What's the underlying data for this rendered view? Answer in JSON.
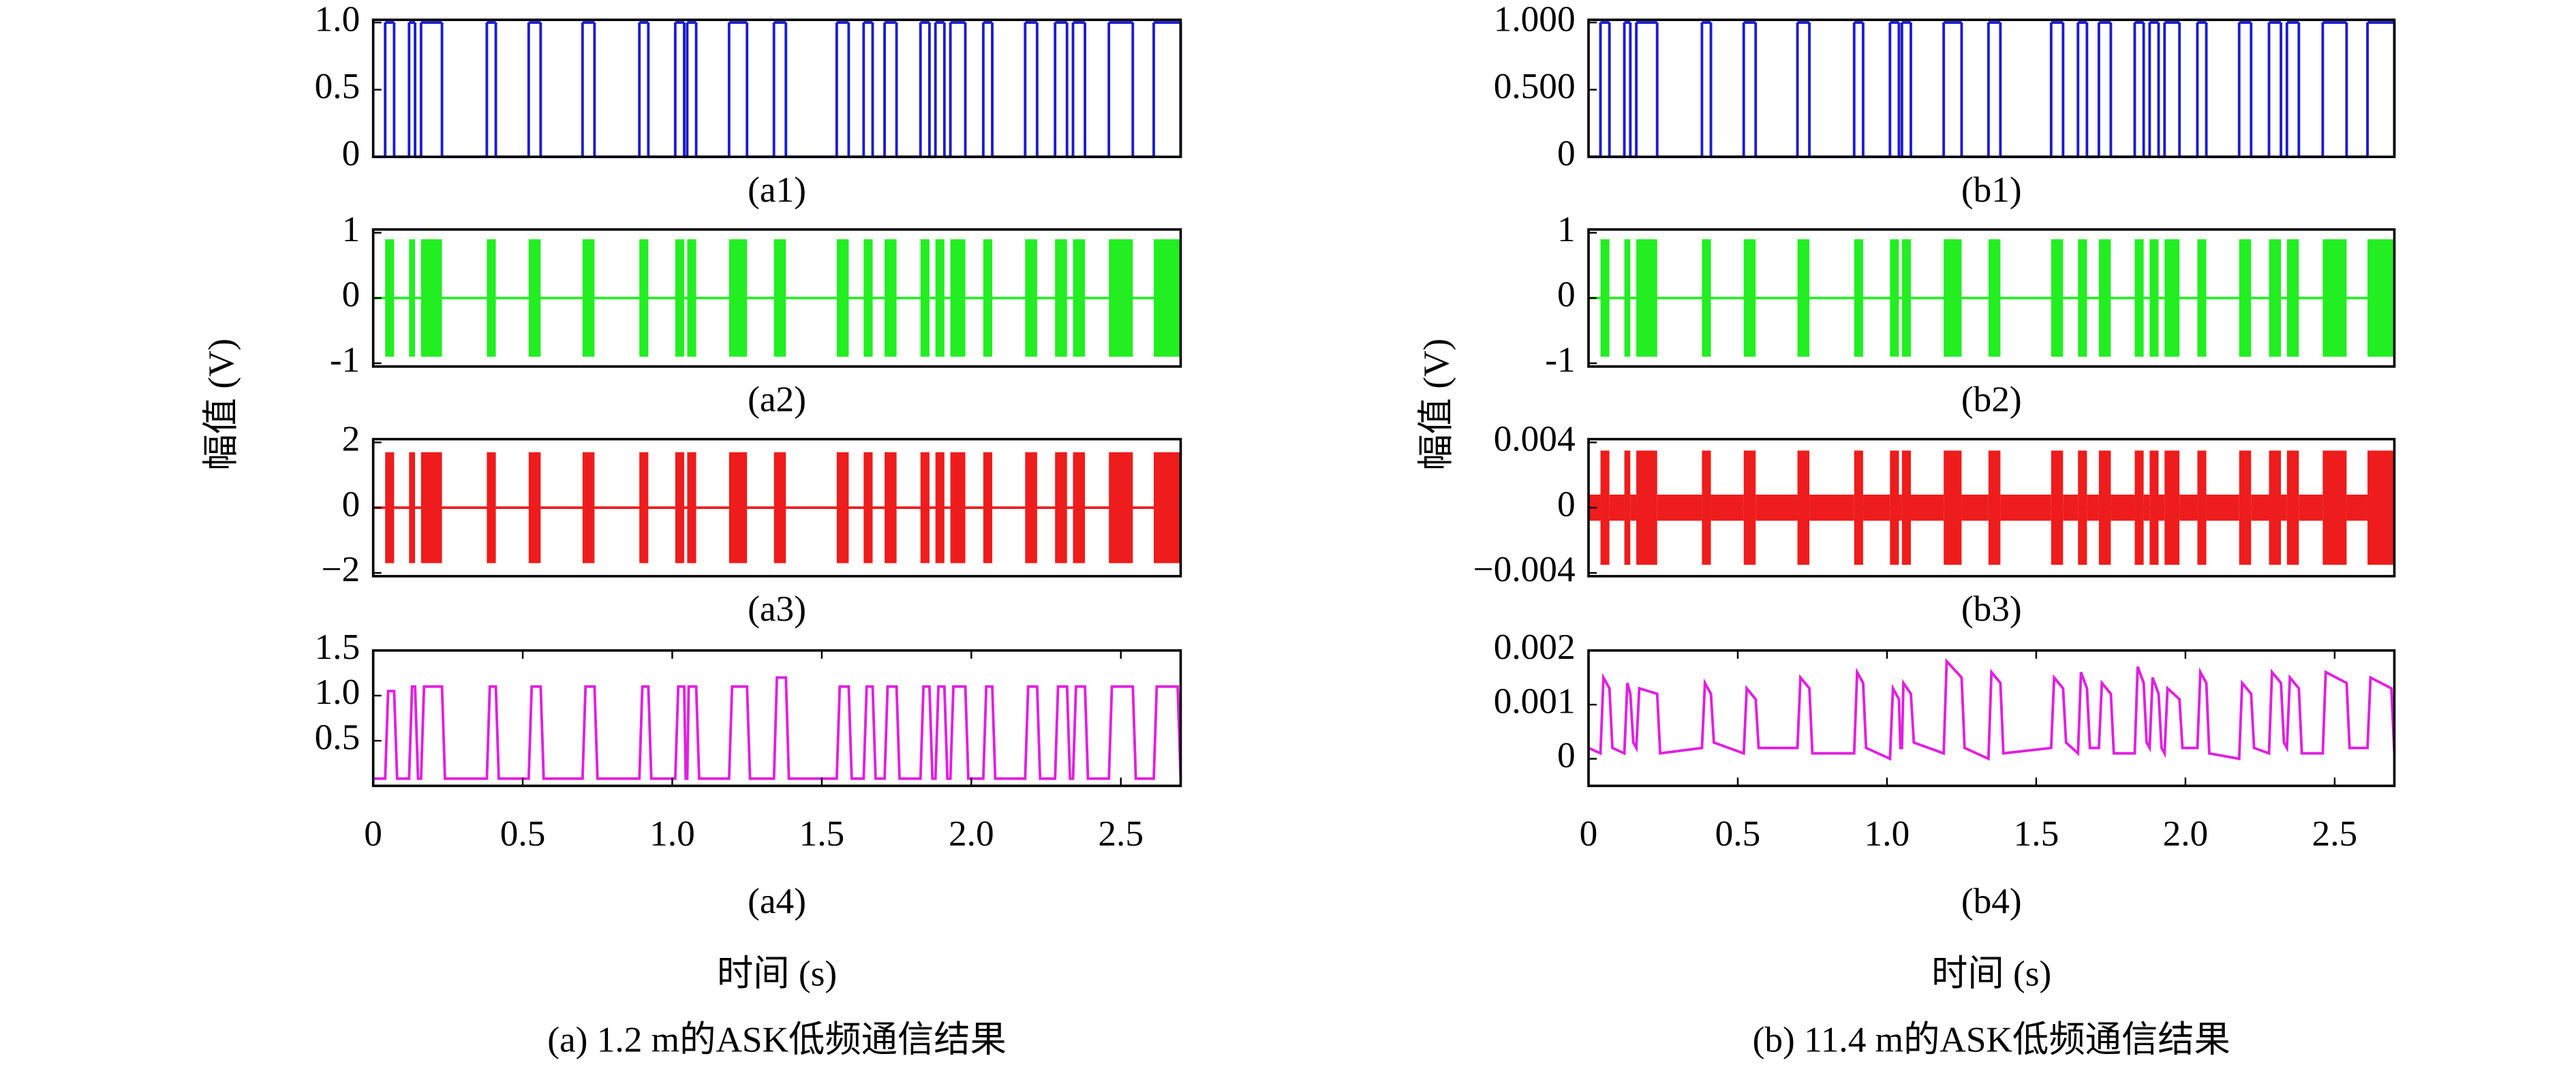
{
  "figures": [
    {
      "ylabel": "幅值 (V)",
      "xlabel": "时间 (s)",
      "caption": "(a) 1.2 m的ASK低频通信结果"
    },
    {
      "ylabel": "幅值 (V)",
      "xlabel": "时间 (s)",
      "caption": "(b) 11.4 m的ASK低频通信结果"
    }
  ],
  "chart_data": [
    {
      "type": "step",
      "title": "(a1)",
      "color": "#1c1ccf",
      "xlim": [
        0,
        2.7
      ],
      "ylim": [
        0,
        1.02
      ],
      "yticks": [
        0,
        0.5,
        {
          "value": 1,
          "label": "1.0"
        }
      ],
      "x": [
        0,
        0.04,
        0.07,
        0.12,
        0.14,
        0.16,
        0.23,
        0.38,
        0.41,
        0.52,
        0.56,
        0.7,
        0.74,
        0.89,
        0.92,
        1.01,
        1.04,
        1.05,
        1.08,
        1.19,
        1.25,
        1.34,
        1.38,
        1.55,
        1.59,
        1.64,
        1.67,
        1.71,
        1.75,
        1.83,
        1.86,
        1.88,
        1.91,
        1.93,
        1.98,
        2.04,
        2.07,
        2.18,
        2.22,
        2.28,
        2.32,
        2.34,
        2.38,
        2.46,
        2.54,
        2.61,
        2.7
      ],
      "values": [
        0,
        1,
        0,
        1,
        0,
        1,
        0,
        1,
        0,
        1,
        0,
        1,
        0,
        1,
        0,
        1,
        0,
        1,
        0,
        1,
        0,
        1,
        0,
        1,
        0,
        1,
        0,
        1,
        0,
        1,
        0,
        1,
        0,
        1,
        0,
        1,
        0,
        1,
        0,
        1,
        0,
        1,
        0,
        1,
        0,
        1,
        0
      ]
    },
    {
      "type": "envelope",
      "title": "(a2)",
      "color": "#22ee22",
      "xlim": [
        0,
        2.7
      ],
      "ylim": [
        -1.05,
        1.05
      ],
      "yticks": [
        -1,
        0,
        1
      ],
      "x": [
        0,
        0.04,
        0.07,
        0.12,
        0.14,
        0.16,
        0.23,
        0.38,
        0.41,
        0.52,
        0.56,
        0.7,
        0.74,
        0.89,
        0.92,
        1.01,
        1.04,
        1.05,
        1.08,
        1.19,
        1.25,
        1.34,
        1.38,
        1.55,
        1.59,
        1.64,
        1.67,
        1.71,
        1.75,
        1.83,
        1.86,
        1.88,
        1.91,
        1.93,
        1.98,
        2.04,
        2.07,
        2.18,
        2.22,
        2.28,
        2.32,
        2.34,
        2.38,
        2.46,
        2.54,
        2.61,
        2.7
      ],
      "values": [
        0,
        0.9,
        0,
        0.9,
        0,
        0.9,
        0,
        0.9,
        0,
        0.9,
        0,
        0.9,
        0,
        0.9,
        0,
        0.9,
        0,
        0.9,
        0,
        0.9,
        0,
        0.9,
        0,
        0.9,
        0,
        0.9,
        0,
        0.9,
        0,
        0.9,
        0,
        0.9,
        0,
        0.9,
        0,
        0.9,
        0,
        0.9,
        0,
        0.9,
        0,
        0.9,
        0,
        0.9,
        0,
        0.9,
        0
      ]
    },
    {
      "type": "envelope",
      "title": "(a3)",
      "color": "#ee1c1c",
      "xlim": [
        0,
        2.7
      ],
      "ylim": [
        -2.1,
        2.1
      ],
      "yticks": [
        {
          "value": -2,
          "label": "−2"
        },
        0,
        2
      ],
      "x": [
        0,
        0.04,
        0.07,
        0.12,
        0.14,
        0.16,
        0.23,
        0.38,
        0.41,
        0.52,
        0.56,
        0.7,
        0.74,
        0.89,
        0.92,
        1.01,
        1.04,
        1.05,
        1.08,
        1.19,
        1.25,
        1.34,
        1.38,
        1.55,
        1.59,
        1.64,
        1.67,
        1.71,
        1.75,
        1.83,
        1.86,
        1.88,
        1.91,
        1.93,
        1.98,
        2.04,
        2.07,
        2.18,
        2.22,
        2.28,
        2.32,
        2.34,
        2.38,
        2.46,
        2.54,
        2.61,
        2.7
      ],
      "values": [
        0,
        1.7,
        0,
        1.7,
        0,
        1.7,
        0,
        1.7,
        0,
        1.7,
        0,
        1.7,
        0,
        1.7,
        0,
        1.7,
        0,
        1.7,
        0,
        1.7,
        0,
        1.7,
        0,
        1.7,
        0,
        1.7,
        0,
        1.7,
        0,
        1.7,
        0,
        1.7,
        0,
        1.7,
        0,
        1.7,
        0,
        1.7,
        0,
        1.7,
        0,
        1.7,
        0,
        1.7,
        0,
        1.7,
        0
      ]
    },
    {
      "type": "line",
      "title": "(a4)",
      "color": "#e020e0",
      "xlim": [
        0,
        2.7
      ],
      "ylim": [
        0,
        1.5
      ],
      "yticks": [
        0.5,
        {
          "value": 1,
          "label": "1.0"
        },
        1.5
      ],
      "xticks": [
        0,
        0.5,
        {
          "value": 1,
          "label": "1.0"
        },
        1.5,
        {
          "value": 2,
          "label": "2.0"
        },
        2.5
      ],
      "x": [
        0,
        0.04,
        0.05,
        0.07,
        0.08,
        0.12,
        0.13,
        0.14,
        0.15,
        0.16,
        0.17,
        0.23,
        0.24,
        0.38,
        0.39,
        0.41,
        0.42,
        0.52,
        0.53,
        0.56,
        0.57,
        0.7,
        0.71,
        0.74,
        0.75,
        0.89,
        0.9,
        0.92,
        0.93,
        1.01,
        1.02,
        1.04,
        1.045,
        1.05,
        1.055,
        1.08,
        1.09,
        1.19,
        1.2,
        1.25,
        1.26,
        1.34,
        1.35,
        1.38,
        1.39,
        1.55,
        1.56,
        1.59,
        1.6,
        1.64,
        1.65,
        1.67,
        1.68,
        1.71,
        1.72,
        1.75,
        1.76,
        1.83,
        1.84,
        1.86,
        1.87,
        1.88,
        1.89,
        1.91,
        1.92,
        1.93,
        1.94,
        1.98,
        1.99,
        2.04,
        2.05,
        2.07,
        2.08,
        2.18,
        2.19,
        2.22,
        2.23,
        2.28,
        2.29,
        2.32,
        2.33,
        2.34,
        2.35,
        2.38,
        2.39,
        2.46,
        2.47,
        2.54,
        2.55,
        2.61,
        2.62,
        2.69,
        2.7
      ],
      "values": [
        0.08,
        0.08,
        1.05,
        1.05,
        0.08,
        0.08,
        1.1,
        1.1,
        0.08,
        0.08,
        1.1,
        1.1,
        0.08,
        0.08,
        1.1,
        1.1,
        0.08,
        0.08,
        1.1,
        1.1,
        0.08,
        0.08,
        1.1,
        1.1,
        0.08,
        0.08,
        1.1,
        1.1,
        0.08,
        0.08,
        1.1,
        1.1,
        0.08,
        0.08,
        1.1,
        1.1,
        0.08,
        0.08,
        1.1,
        1.1,
        0.08,
        0.08,
        1.2,
        1.2,
        0.08,
        0.08,
        1.1,
        1.1,
        0.08,
        0.08,
        1.1,
        1.1,
        0.08,
        0.08,
        1.1,
        1.1,
        0.08,
        0.08,
        1.1,
        1.1,
        0.08,
        0.08,
        1.1,
        1.1,
        0.08,
        0.08,
        1.1,
        1.1,
        0.08,
        0.08,
        1.1,
        1.1,
        0.08,
        0.08,
        1.1,
        1.1,
        0.08,
        0.08,
        1.1,
        1.1,
        0.08,
        0.08,
        1.1,
        1.1,
        0.08,
        0.08,
        1.1,
        1.1,
        0.08,
        0.08,
        1.1,
        1.1,
        0.08
      ]
    },
    {
      "type": "step",
      "title": "(b1)",
      "color": "#1c1ccf",
      "xlim": [
        0,
        2.7
      ],
      "ylim": [
        0,
        1.02
      ],
      "yticks": [
        0,
        {
          "value": 0.5,
          "label": "0.500"
        },
        {
          "value": 1,
          "label": "1.000"
        }
      ],
      "x": [
        0,
        0.04,
        0.07,
        0.12,
        0.14,
        0.16,
        0.23,
        0.38,
        0.41,
        0.52,
        0.56,
        0.7,
        0.74,
        0.89,
        0.92,
        1.01,
        1.04,
        1.05,
        1.08,
        1.19,
        1.25,
        1.34,
        1.38,
        1.55,
        1.59,
        1.64,
        1.67,
        1.71,
        1.75,
        1.83,
        1.86,
        1.88,
        1.91,
        1.93,
        1.98,
        2.04,
        2.07,
        2.18,
        2.22,
        2.28,
        2.32,
        2.34,
        2.38,
        2.46,
        2.54,
        2.61,
        2.7
      ],
      "values": [
        0,
        1,
        0,
        1,
        0,
        1,
        0,
        1,
        0,
        1,
        0,
        1,
        0,
        1,
        0,
        1,
        0,
        1,
        0,
        1,
        0,
        1,
        0,
        1,
        0,
        1,
        0,
        1,
        0,
        1,
        0,
        1,
        0,
        1,
        0,
        1,
        0,
        1,
        0,
        1,
        0,
        1,
        0,
        1,
        0,
        1,
        0
      ]
    },
    {
      "type": "envelope",
      "title": "(b2)",
      "color": "#22ee22",
      "xlim": [
        0,
        2.7
      ],
      "ylim": [
        -1.05,
        1.05
      ],
      "yticks": [
        -1,
        0,
        1
      ],
      "x": [
        0,
        0.04,
        0.07,
        0.12,
        0.14,
        0.16,
        0.23,
        0.38,
        0.41,
        0.52,
        0.56,
        0.7,
        0.74,
        0.89,
        0.92,
        1.01,
        1.04,
        1.05,
        1.08,
        1.19,
        1.25,
        1.34,
        1.38,
        1.55,
        1.59,
        1.64,
        1.67,
        1.71,
        1.75,
        1.83,
        1.86,
        1.88,
        1.91,
        1.93,
        1.98,
        2.04,
        2.07,
        2.18,
        2.22,
        2.28,
        2.32,
        2.34,
        2.38,
        2.46,
        2.54,
        2.61,
        2.7
      ],
      "values": [
        0,
        0.9,
        0,
        0.9,
        0,
        0.9,
        0,
        0.9,
        0,
        0.9,
        0,
        0.9,
        0,
        0.9,
        0,
        0.9,
        0,
        0.9,
        0,
        0.9,
        0,
        0.9,
        0,
        0.9,
        0,
        0.9,
        0,
        0.9,
        0,
        0.9,
        0,
        0.9,
        0,
        0.9,
        0,
        0.9,
        0,
        0.9,
        0,
        0.9,
        0,
        0.9,
        0,
        0.9,
        0,
        0.9,
        0
      ]
    },
    {
      "type": "envelope",
      "title": "(b3)",
      "color": "#ee1c1c",
      "xlim": [
        0,
        2.7
      ],
      "ylim": [
        -0.0042,
        0.0042
      ],
      "yticks": [
        {
          "value": -0.004,
          "label": "−0.004"
        },
        0,
        0.004
      ],
      "x": [
        0,
        0.04,
        0.07,
        0.12,
        0.14,
        0.16,
        0.23,
        0.38,
        0.41,
        0.52,
        0.56,
        0.7,
        0.74,
        0.89,
        0.92,
        1.01,
        1.04,
        1.05,
        1.08,
        1.19,
        1.25,
        1.34,
        1.38,
        1.55,
        1.59,
        1.64,
        1.67,
        1.71,
        1.75,
        1.83,
        1.86,
        1.88,
        1.91,
        1.93,
        1.98,
        2.04,
        2.07,
        2.18,
        2.22,
        2.28,
        2.32,
        2.34,
        2.38,
        2.46,
        2.54,
        2.61,
        2.7
      ],
      "values": [
        0.0008,
        0.0035,
        0.0008,
        0.0035,
        0.0008,
        0.0035,
        0.0008,
        0.0035,
        0.0008,
        0.0035,
        0.0008,
        0.0035,
        0.0008,
        0.0035,
        0.0008,
        0.0035,
        0.0008,
        0.0035,
        0.0008,
        0.0035,
        0.0008,
        0.0035,
        0.0008,
        0.0035,
        0.0008,
        0.0035,
        0.0008,
        0.0035,
        0.0008,
        0.0035,
        0.0008,
        0.0035,
        0.0008,
        0.0035,
        0.0008,
        0.0035,
        0.0008,
        0.0035,
        0.0008,
        0.0035,
        0.0008,
        0.0035,
        0.0008,
        0.0035,
        0.0008,
        0.0035,
        0.0008
      ]
    },
    {
      "type": "line",
      "title": "(b4)",
      "color": "#e020e0",
      "xlim": [
        0,
        2.7
      ],
      "ylim": [
        -0.0005,
        0.002
      ],
      "yticks": [
        0,
        0.001,
        0.002
      ],
      "xticks": [
        0,
        0.5,
        {
          "value": 1,
          "label": "1.0"
        },
        1.5,
        {
          "value": 2,
          "label": "2.0"
        },
        2.5
      ],
      "x": [
        0,
        0.04,
        0.05,
        0.07,
        0.08,
        0.12,
        0.13,
        0.14,
        0.15,
        0.16,
        0.17,
        0.23,
        0.24,
        0.38,
        0.39,
        0.41,
        0.42,
        0.52,
        0.53,
        0.56,
        0.57,
        0.7,
        0.71,
        0.74,
        0.75,
        0.89,
        0.9,
        0.92,
        0.93,
        1.01,
        1.02,
        1.04,
        1.045,
        1.05,
        1.055,
        1.08,
        1.09,
        1.19,
        1.2,
        1.25,
        1.26,
        1.34,
        1.35,
        1.38,
        1.39,
        1.55,
        1.56,
        1.59,
        1.6,
        1.64,
        1.65,
        1.67,
        1.68,
        1.71,
        1.72,
        1.75,
        1.76,
        1.83,
        1.84,
        1.86,
        1.87,
        1.88,
        1.89,
        1.91,
        1.92,
        1.93,
        1.94,
        1.98,
        1.99,
        2.04,
        2.05,
        2.07,
        2.08,
        2.18,
        2.19,
        2.22,
        2.23,
        2.28,
        2.29,
        2.32,
        2.33,
        2.34,
        2.35,
        2.38,
        2.39,
        2.46,
        2.47,
        2.54,
        2.55,
        2.61,
        2.62,
        2.69,
        2.7
      ],
      "values": [
        0.0002,
        0.0001,
        0.0015,
        0.0013,
        0.0002,
        0.0001,
        0.0014,
        0.0012,
        0.0003,
        0.0002,
        0.0013,
        0.0012,
        0.0001,
        0.0002,
        0.0014,
        0.0012,
        0.0003,
        0.0001,
        0.0013,
        0.0011,
        0.0002,
        0.0002,
        0.0015,
        0.0013,
        0.0001,
        0.0001,
        0.0016,
        0.0014,
        0.0002,
        0,
        0.0013,
        0.0011,
        0.0002,
        0.0002,
        0.0014,
        0.0012,
        0.0003,
        0.0001,
        0.0018,
        0.0015,
        0.0002,
        0,
        0.0016,
        0.0014,
        0.0001,
        0.0002,
        0.0015,
        0.0013,
        0.0003,
        0.0001,
        0.0016,
        0.0013,
        0.0002,
        0.0002,
        0.0014,
        0.0012,
        0.0001,
        0.0001,
        0.0017,
        0.0014,
        0.0003,
        0.0002,
        0.0015,
        0.0012,
        0.0002,
        0.0001,
        0.0013,
        0.0011,
        0.0002,
        0.0002,
        0.0016,
        0.0014,
        0.0001,
        0,
        0.0014,
        0.0012,
        0.0002,
        0.0001,
        0.0016,
        0.0014,
        0.0003,
        0.0002,
        0.0015,
        0.0013,
        0.0001,
        0.0001,
        0.0016,
        0.0014,
        0.0002,
        0.0002,
        0.0015,
        0.0013,
        0.0001
      ]
    }
  ]
}
